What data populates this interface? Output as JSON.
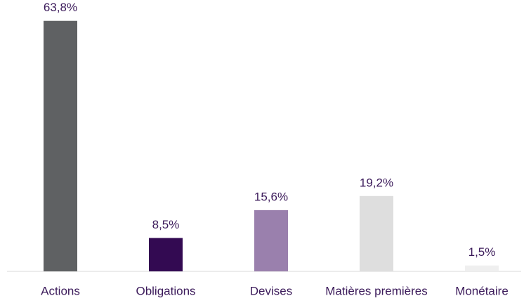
{
  "chart_data": {
    "type": "bar",
    "categories": [
      "Actions",
      "Obligations",
      "Devises",
      "Matières premières",
      "Monétaire"
    ],
    "values": [
      63.8,
      8.5,
      15.6,
      19.2,
      1.5
    ],
    "value_labels": [
      "63,8%",
      "8,5%",
      "15,6%",
      "19,2%",
      "1,5%"
    ],
    "colors": [
      "#5f6163",
      "#330a52",
      "#9a80ad",
      "#dedede",
      "#efefef"
    ],
    "ylim": [
      0,
      65
    ]
  }
}
